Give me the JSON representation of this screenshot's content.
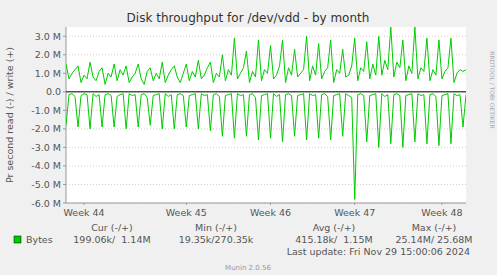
{
  "chart_data": {
    "type": "line",
    "title": "Disk throughput for /dev/vdd - by month",
    "y_label": "Pr second read (-) / write (+)",
    "categories": [
      null,
      null,
      null,
      null,
      null,
      null,
      "Week 44",
      null,
      null,
      null,
      null,
      null,
      null,
      null,
      null,
      null,
      null,
      null,
      null,
      null,
      null,
      null,
      null,
      null,
      null,
      null,
      null,
      null,
      null,
      null,
      null,
      null,
      null,
      null,
      null,
      null,
      null,
      null,
      null,
      null,
      "Week 45",
      null,
      null,
      null,
      null,
      null,
      null,
      null,
      null,
      null,
      null,
      null,
      null,
      null,
      null,
      null,
      null,
      null,
      null,
      null,
      null,
      null,
      null,
      null,
      null,
      null,
      null,
      null,
      "Week 46",
      null,
      null,
      null,
      null,
      null,
      null,
      null,
      null,
      null,
      null,
      null,
      null,
      null,
      null,
      null,
      null,
      null,
      null,
      null,
      null,
      null,
      null,
      null,
      null,
      null,
      null,
      null,
      "Week 47",
      null,
      null,
      null,
      null,
      null,
      null,
      null,
      null,
      null,
      null,
      null,
      null,
      null,
      null,
      null,
      null,
      null,
      null,
      null,
      null,
      null,
      null,
      null,
      null,
      null,
      null,
      null,
      null,
      "Week 48",
      null,
      null,
      null,
      null,
      null,
      null,
      null,
      null
    ],
    "series": [
      {
        "name": "Bytes",
        "color": "#00cc00",
        "values": [
          1500000,
          700000,
          1000000,
          1200000,
          1400000,
          500000,
          900000,
          700000,
          1600000,
          800000,
          600000,
          1100000,
          1300000,
          400000,
          1000000,
          800000,
          1500000,
          600000,
          1200000,
          900000,
          1400000,
          500000,
          800000,
          1000000,
          1500000,
          700000,
          400000,
          1100000,
          1300000,
          600000,
          1000000,
          700000,
          1600000,
          500000,
          900000,
          1200000,
          1400000,
          800000,
          500000,
          1000000,
          1500000,
          600000,
          1100000,
          800000,
          1700000,
          700000,
          900000,
          1300000,
          1600000,
          500000,
          1000000,
          800000,
          2000000,
          600000,
          1200000,
          900000,
          2900000,
          700000,
          1000000,
          1300000,
          2200000,
          500000,
          1100000,
          800000,
          2800000,
          600000,
          1200000,
          1000000,
          2500000,
          700000,
          900000,
          1400000,
          2800000,
          500000,
          1300000,
          900000,
          2300000,
          800000,
          1000000,
          1200000,
          3000000,
          600000,
          1400000,
          900000,
          2600000,
          700000,
          1100000,
          1300000,
          2800000,
          500000,
          1200000,
          1000000,
          2300000,
          800000,
          900000,
          1400000,
          2900000,
          600000,
          1300000,
          1100000,
          2700000,
          700000,
          1500000,
          900000,
          3000000,
          900000,
          1700000,
          1200000,
          3500000,
          800000,
          1600000,
          1300000,
          2800000,
          600000,
          1400000,
          1000000,
          3500000,
          700000,
          1300000,
          1100000,
          2900000,
          600000,
          1200000,
          900000,
          2800000,
          700000,
          1100000,
          1300000,
          2900000,
          500000,
          1000000,
          1200000,
          1100000,
          1200000
        ]
      },
      {
        "color": "#00cc00",
        "values": [
          -1800000,
          -150000,
          -100000,
          -250000,
          -1900000,
          -200000,
          -100000,
          -150000,
          -2000000,
          -100000,
          -250000,
          -150000,
          -1900000,
          -150000,
          -100000,
          -200000,
          -1900000,
          -250000,
          -150000,
          -100000,
          -2000000,
          -100000,
          -200000,
          -150000,
          -1900000,
          -150000,
          -100000,
          -300000,
          -1800000,
          -200000,
          -150000,
          -100000,
          -2000000,
          -100000,
          -250000,
          -150000,
          -2000000,
          -150000,
          -100000,
          -200000,
          -1900000,
          -200000,
          -150000,
          -100000,
          -2000000,
          -100000,
          -200000,
          -150000,
          -2100000,
          -150000,
          -100000,
          -250000,
          -2400000,
          -200000,
          -150000,
          -100000,
          -2500000,
          -100000,
          -200000,
          -150000,
          -2400000,
          -150000,
          -100000,
          -300000,
          -2600000,
          -200000,
          -150000,
          -100000,
          -2500000,
          -100000,
          -250000,
          -150000,
          -2700000,
          -150000,
          -100000,
          -200000,
          -2400000,
          -200000,
          -150000,
          -100000,
          -2600000,
          -100000,
          -200000,
          -150000,
          -2500000,
          -150000,
          -100000,
          -250000,
          -2600000,
          -200000,
          -150000,
          -100000,
          -2400000,
          -100000,
          -200000,
          -300000,
          -5800000,
          -150000,
          -100000,
          -200000,
          -2700000,
          -200000,
          -150000,
          -100000,
          -3000000,
          -100000,
          -250000,
          -150000,
          -2800000,
          -150000,
          -100000,
          -200000,
          -3000000,
          -200000,
          -150000,
          -100000,
          -2700000,
          -100000,
          -200000,
          -150000,
          -2800000,
          -150000,
          -100000,
          -250000,
          -2900000,
          -200000,
          -150000,
          -100000,
          -2800000,
          -100000,
          -200000,
          -150000,
          -1900000,
          -150000
        ]
      }
    ],
    "ylim": [
      -6000000,
      3500000
    ],
    "yticks": [
      {
        "value": -6000000,
        "label": "-6.0 M"
      },
      {
        "value": -5000000,
        "label": "-5.0 M"
      },
      {
        "value": -4000000,
        "label": "-4.0 M"
      },
      {
        "value": -3000000,
        "label": "-3.0 M"
      },
      {
        "value": -2000000,
        "label": "-2.0 M"
      },
      {
        "value": -1000000,
        "label": "-1.0 M"
      },
      {
        "value": 0,
        "label": "0.0"
      },
      {
        "value": 1000000,
        "label": "1.0 M"
      },
      {
        "value": 2000000,
        "label": "2.0 M"
      },
      {
        "value": 3000000,
        "label": "3.0 M"
      }
    ],
    "grid": true,
    "legend": "bottom",
    "legend_stats": {
      "headers": [
        "Cur (-/+)",
        "Min (-/+)",
        "Avg (-/+)",
        "Max (-/+)"
      ],
      "values": [
        "199.06k/  1.14M",
        "19.35k/270.35k",
        "415.18k/  1.15M",
        "25.14M/ 25.68M"
      ]
    },
    "last_update": "Last update: Fri Nov 29 15:00:06 2024",
    "footer": "Munin 2.0.56",
    "watermark": "RRDTOOL / TOBI OETIKER"
  }
}
